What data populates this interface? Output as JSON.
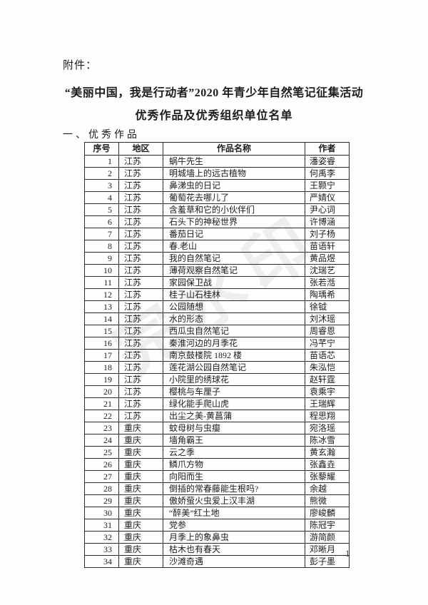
{
  "page": {
    "attachment_label": "附件：",
    "title_line1": "“美丽中国，我是行动者”2020 年青少年自然笔记征集活动",
    "title_line2": "优秀作品及优秀组织单位名单",
    "section_heading": "一、优秀作品",
    "watermark_text": "完水印",
    "page_number": "1"
  },
  "table": {
    "columns": [
      "序号",
      "地区",
      "作品名称",
      "作者"
    ],
    "rows": [
      {
        "num": "1",
        "region": "江苏",
        "title": "蜗牛先生",
        "author": "潘姿睿"
      },
      {
        "num": "2",
        "region": "江苏",
        "title": "明城墙上的远古植物",
        "author": "何禹李"
      },
      {
        "num": "3",
        "region": "江苏",
        "title": "鼻涕虫的日记",
        "author": "王颢宁"
      },
      {
        "num": "4",
        "region": "江苏",
        "title": "葡萄花去哪儿了",
        "author": "严婧仪"
      },
      {
        "num": "5",
        "region": "江苏",
        "title": "含羞草和它的小伙伴们",
        "author": "尹心词"
      },
      {
        "num": "6",
        "region": "江苏",
        "title": "石头下的神秘世界",
        "author": "许博涵"
      },
      {
        "num": "7",
        "region": "江苏",
        "title": "番茄日记",
        "author": "刘子杨"
      },
      {
        "num": "8",
        "region": "江苏",
        "title": "春.老山",
        "author": "苗语轩"
      },
      {
        "num": "9",
        "region": "江苏",
        "title": "我的自然笔记",
        "author": "黄品煜"
      },
      {
        "num": "10",
        "region": "江苏",
        "title": "薄荷观察自然笔记",
        "author": "沈瑞艺"
      },
      {
        "num": "11",
        "region": "江苏",
        "title": "家园保卫战",
        "author": "张若湉"
      },
      {
        "num": "12",
        "region": "江苏",
        "title": "桂子山石桂林",
        "author": "陶瑀希"
      },
      {
        "num": "13",
        "region": "江苏",
        "title": "公园随想",
        "author": "徐钺"
      },
      {
        "num": "14",
        "region": "江苏",
        "title": "水的形态",
        "author": "刘沐瑶"
      },
      {
        "num": "15",
        "region": "江苏",
        "title": "西瓜虫自然笔记",
        "author": "周睿恩"
      },
      {
        "num": "16",
        "region": "江苏",
        "title": "秦淮河边的月季花",
        "author": "冯芊宁"
      },
      {
        "num": "17",
        "region": "江苏",
        "title": "南京鼓楼院 1892 楼",
        "author": "苗语芯"
      },
      {
        "num": "18",
        "region": "江苏",
        "title": "莲花湖公园自然笔记",
        "author": "朱泓恺"
      },
      {
        "num": "19",
        "region": "江苏",
        "title": "小院里的绣球花",
        "author": "赵轩霆"
      },
      {
        "num": "20",
        "region": "江苏",
        "title": "樱桃与车厘子",
        "author": "袁乘宇"
      },
      {
        "num": "21",
        "region": "江苏",
        "title": "绿化能手爬山虎",
        "author": "王瑞辉"
      },
      {
        "num": "22",
        "region": "江苏",
        "title": "出尘之美-黄菖蒲",
        "author": "程思翔"
      },
      {
        "num": "23",
        "region": "重庆",
        "title": "蚊母树与虫瘿",
        "author": "宛洛瑶"
      },
      {
        "num": "24",
        "region": "重庆",
        "title": "墙角霸王",
        "author": "陈冰雪"
      },
      {
        "num": "25",
        "region": "重庆",
        "title": "云之季",
        "author": "黄玄瀚"
      },
      {
        "num": "26",
        "region": "重庆",
        "title": "鳞爪方物",
        "author": "张鑫垚"
      },
      {
        "num": "27",
        "region": "重庆",
        "title": "向阳而生",
        "author": "张藜耀"
      },
      {
        "num": "28",
        "region": "重庆",
        "title": "倒插的常春藤能生根吗?",
        "author": "余越"
      },
      {
        "num": "29",
        "region": "重庆",
        "title": "傲娇萤火虫爱上汉丰湖",
        "author": "熊微"
      },
      {
        "num": "30",
        "region": "重庆",
        "title": "“醉美”红土地",
        "author": "廖峻麟"
      },
      {
        "num": "31",
        "region": "重庆",
        "title": "党参",
        "author": "陈冠宇"
      },
      {
        "num": "32",
        "region": "重庆",
        "title": "月季上的象鼻虫",
        "author": "游简颜"
      },
      {
        "num": "33",
        "region": "重庆",
        "title": "枯木也有春天",
        "author": "邓晰月"
      },
      {
        "num": "34",
        "region": "重庆",
        "title": "沙滩奇遇",
        "author": "彭子墨"
      }
    ]
  }
}
